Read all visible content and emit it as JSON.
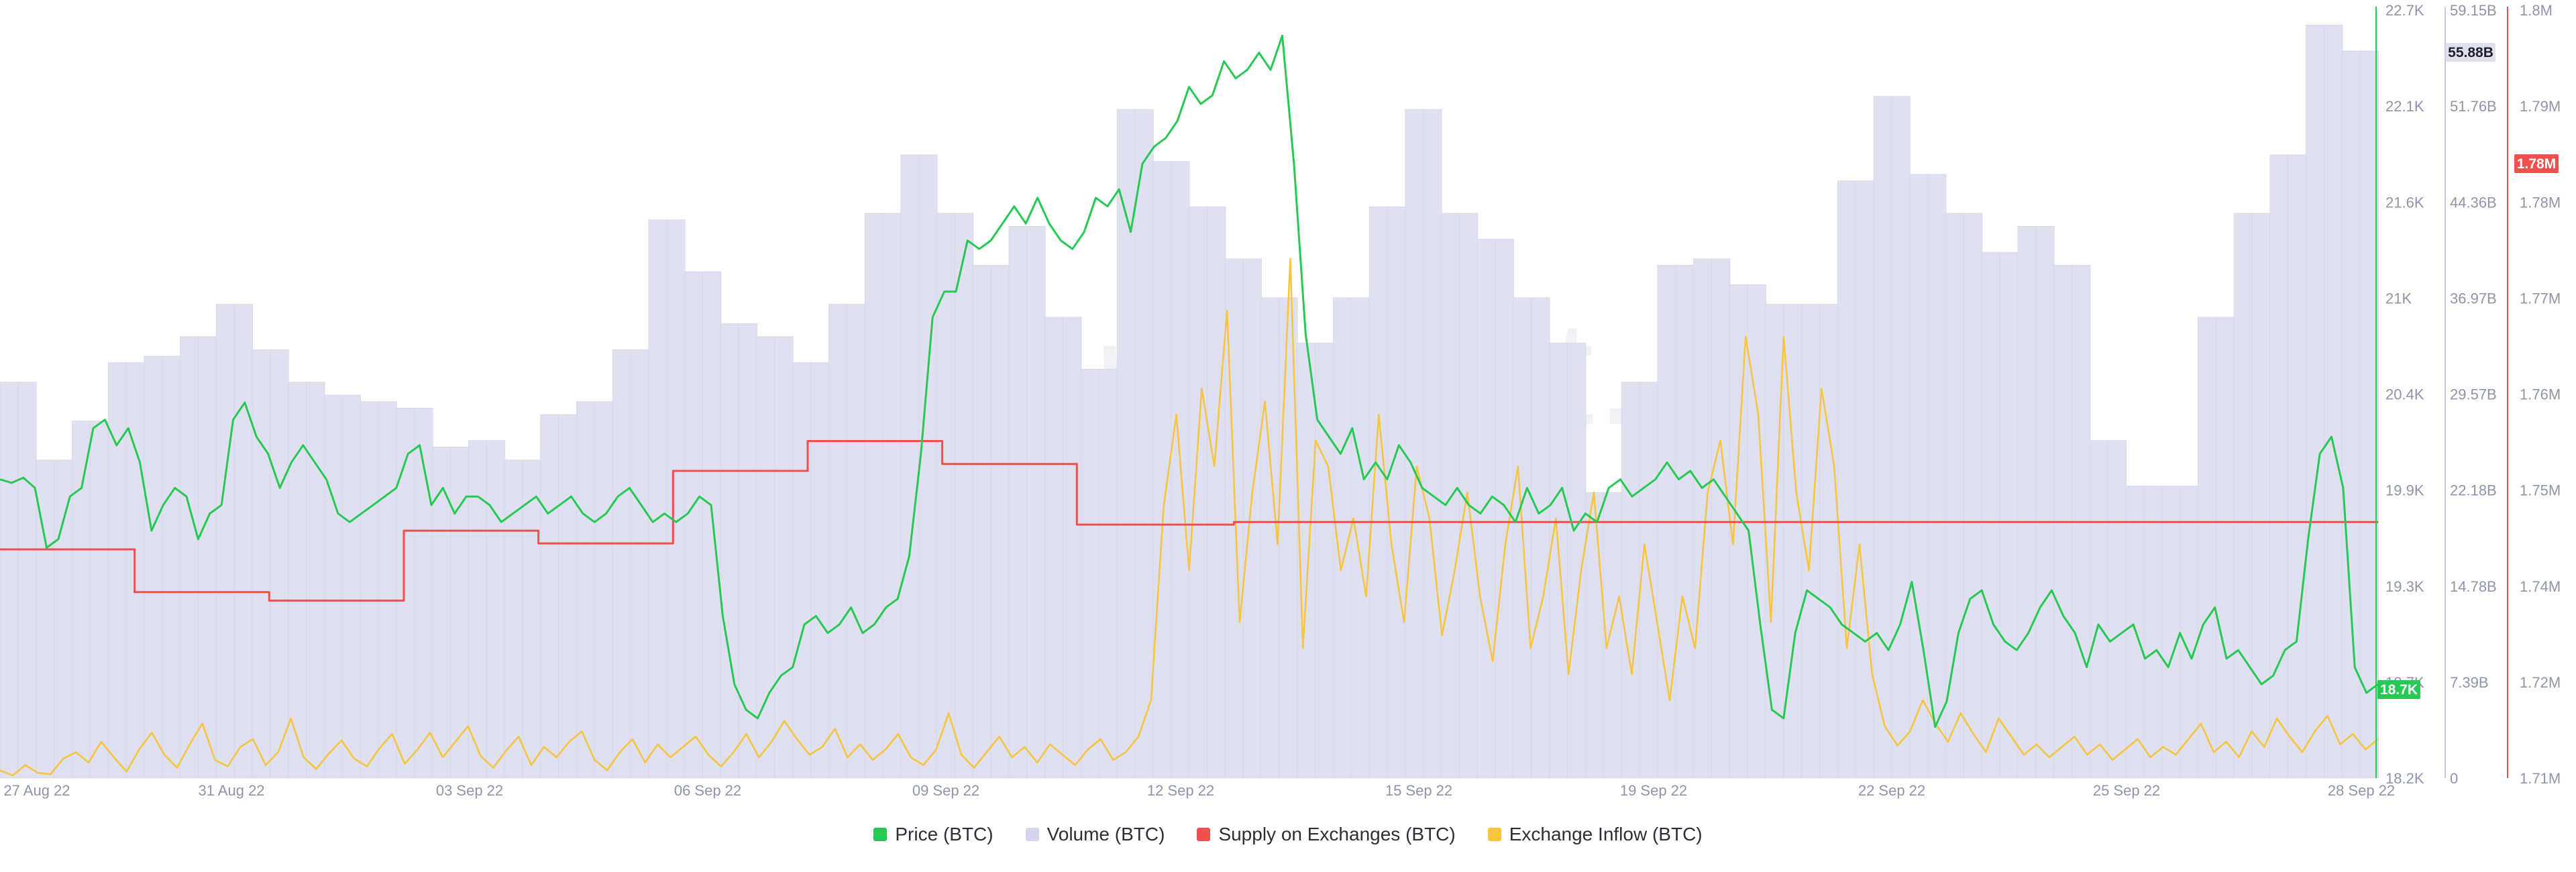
{
  "watermark": "santiment.",
  "legend": [
    {
      "label": "Price (BTC)",
      "color": "#26c953"
    },
    {
      "label": "Volume (BTC)",
      "color": "#d3d6ea"
    },
    {
      "label": "Supply on Exchanges (BTC)",
      "color": "#f0504d"
    },
    {
      "label": "Exchange Inflow (BTC)",
      "color": "#f9c53c"
    }
  ],
  "chart_data": {
    "type": "line",
    "x_start": "27 Aug 22",
    "x_end": "28 Sep 22",
    "x_ticks": [
      "27 Aug 22",
      "31 Aug 22",
      "03 Sep 22",
      "06 Sep 22",
      "09 Sep 22",
      "12 Sep 22",
      "15 Sep 22",
      "19 Sep 22",
      "22 Sep 22",
      "25 Sep 22",
      "28 Sep 22"
    ],
    "axes": {
      "price": {
        "ticks": [
          "22.7K",
          "22.1K",
          "21.6K",
          "21K",
          "20.4K",
          "19.9K",
          "19.3K",
          "18.7K",
          "18.2K"
        ],
        "range": [
          18200,
          22700
        ],
        "badge": "18.7K",
        "color": "#26c953"
      },
      "volume": {
        "ticks": [
          "59.15B",
          "51.76B",
          "44.36B",
          "36.97B",
          "29.57B",
          "22.18B",
          "14.78B",
          "7.39B",
          "0"
        ],
        "range": [
          0,
          59.15
        ],
        "badge": "55.88B",
        "color": "#8f95a8"
      },
      "supply": {
        "ticks": [
          "1.8M",
          "1.79M",
          "1.78M",
          "1.77M",
          "1.76M",
          "1.75M",
          "1.74M",
          "1.72M",
          "1.71M"
        ],
        "range": [
          1.71,
          1.8
        ],
        "badge": "1.78M",
        "color": "#f0504d"
      }
    },
    "series": [
      {
        "name": "Price (BTC)",
        "color": "#26c953",
        "values": [
          19950,
          19930,
          19960,
          19900,
          19550,
          19600,
          19850,
          19900,
          20250,
          20300,
          20150,
          20250,
          20050,
          19650,
          19800,
          19900,
          19850,
          19600,
          19750,
          19800,
          20300,
          20400,
          20200,
          20100,
          19900,
          20050,
          20150,
          20050,
          19950,
          19750,
          19700,
          19750,
          19800,
          19850,
          19900,
          20100,
          20150,
          19800,
          19900,
          19750,
          19850,
          19850,
          19800,
          19700,
          19750,
          19800,
          19850,
          19750,
          19800,
          19850,
          19750,
          19700,
          19750,
          19850,
          19900,
          19800,
          19700,
          19750,
          19700,
          19750,
          19850,
          19800,
          19150,
          18750,
          18600,
          18550,
          18700,
          18800,
          18850,
          19100,
          19150,
          19050,
          19100,
          19200,
          19050,
          19100,
          19200,
          19250,
          19500,
          20100,
          20900,
          21050,
          21050,
          21350,
          21300,
          21350,
          21450,
          21550,
          21450,
          21600,
          21450,
          21350,
          21300,
          21400,
          21600,
          21550,
          21650,
          21400,
          21800,
          21900,
          21950,
          22050,
          22250,
          22150,
          22200,
          22400,
          22300,
          22350,
          22450,
          22350,
          22550,
          21800,
          20800,
          20300,
          20200,
          20100,
          20250,
          19950,
          20050,
          19950,
          20150,
          20050,
          19900,
          19850,
          19800,
          19900,
          19800,
          19750,
          19850,
          19800,
          19700,
          19900,
          19750,
          19800,
          19900,
          19650,
          19750,
          19700,
          19900,
          19950,
          19850,
          19900,
          19950,
          20050,
          19950,
          20000,
          19900,
          19950,
          19850,
          19750,
          19650,
          19100,
          18600,
          18550,
          19050,
          19300,
          19250,
          19200,
          19100,
          19050,
          19000,
          19050,
          18950,
          19100,
          19350,
          18950,
          18500,
          18650,
          19050,
          19250,
          19300,
          19100,
          19000,
          18950,
          19050,
          19200,
          19300,
          19150,
          19050,
          18850,
          19100,
          19000,
          19050,
          19100,
          18900,
          18950,
          18850,
          19050,
          18900,
          19100,
          19200,
          18900,
          18950,
          18850,
          18750,
          18800,
          18950,
          19000,
          19600,
          20100,
          20200,
          19900,
          18850,
          18700,
          18750
        ]
      },
      {
        "name": "Volume (BTC)",
        "color": "#d3d6ea",
        "values": [
          30.5,
          30.5,
          24.5,
          24.5,
          27.5,
          27.5,
          32,
          32,
          32.5,
          32.5,
          34,
          34,
          36.5,
          36.5,
          33,
          33,
          30.5,
          30.5,
          29.5,
          29.5,
          29,
          29,
          28.5,
          28.5,
          25.5,
          25.5,
          26,
          26,
          24.5,
          24.5,
          28,
          28,
          29,
          29,
          33,
          33,
          43,
          43,
          39,
          39,
          35,
          35,
          34,
          34,
          32,
          32,
          36.5,
          36.5,
          43.5,
          43.5,
          48,
          48,
          43.5,
          43.5,
          39.5,
          39.5,
          42.5,
          42.5,
          35.5,
          35.5,
          31.5,
          31.5,
          51.5,
          51.5,
          47.5,
          47.5,
          44,
          44,
          40,
          40,
          37,
          37,
          33.5,
          33.5,
          37,
          37,
          44,
          44,
          51.5,
          51.5,
          43.5,
          43.5,
          41.5,
          41.5,
          37,
          37,
          33.5,
          33.5,
          22,
          22,
          30.5,
          30.5,
          39.5,
          39.5,
          40,
          40,
          38,
          38,
          36.5,
          36.5,
          36.5,
          36.5,
          46,
          46,
          52.5,
          52.5,
          46.5,
          46.5,
          43.5,
          43.5,
          40.5,
          40.5,
          42.5,
          42.5,
          39.5,
          39.5,
          26,
          26,
          22.5,
          22.5,
          22.5,
          22.5,
          35.5,
          35.5,
          43.5,
          43.5,
          48,
          48,
          58,
          58,
          56,
          56
        ]
      },
      {
        "name": "Supply on Exchanges (BTC)",
        "color": "#f0504d",
        "values": [
          1.7368,
          1.7368,
          1.7368,
          1.7368,
          1.7368,
          1.7368,
          1.7368,
          1.7368,
          1.7368,
          1.7368,
          1.7368,
          1.7368,
          1.7318,
          1.7318,
          1.7318,
          1.7318,
          1.7318,
          1.7318,
          1.7318,
          1.7318,
          1.7318,
          1.7318,
          1.7318,
          1.7318,
          1.7308,
          1.7308,
          1.7308,
          1.7308,
          1.7308,
          1.7308,
          1.7308,
          1.7308,
          1.7308,
          1.7308,
          1.7308,
          1.7308,
          1.739,
          1.739,
          1.739,
          1.739,
          1.739,
          1.739,
          1.739,
          1.739,
          1.739,
          1.739,
          1.739,
          1.739,
          1.7375,
          1.7375,
          1.7375,
          1.7375,
          1.7375,
          1.7375,
          1.7375,
          1.7375,
          1.7375,
          1.7375,
          1.7375,
          1.7375,
          1.746,
          1.746,
          1.746,
          1.746,
          1.746,
          1.746,
          1.746,
          1.746,
          1.746,
          1.746,
          1.746,
          1.746,
          1.7495,
          1.7495,
          1.7495,
          1.7495,
          1.7495,
          1.7495,
          1.7495,
          1.7495,
          1.7495,
          1.7495,
          1.7495,
          1.7495,
          1.7468,
          1.7468,
          1.7468,
          1.7468,
          1.7468,
          1.7468,
          1.7468,
          1.7468,
          1.7468,
          1.7468,
          1.7468,
          1.7468,
          1.7397,
          1.7397,
          1.7397,
          1.7397,
          1.7397,
          1.7397,
          1.7397,
          1.7397,
          1.7397,
          1.7397,
          1.7397,
          1.7397,
          1.7397,
          1.7397,
          1.74,
          1.74,
          1.74,
          1.74,
          1.74,
          1.74,
          1.74,
          1.74,
          1.74,
          1.74,
          1.74,
          1.74,
          1.74,
          1.74,
          1.74,
          1.74,
          1.74,
          1.74,
          1.74,
          1.74,
          1.74,
          1.74,
          1.74,
          1.74,
          1.74,
          1.74,
          1.74,
          1.74,
          1.74,
          1.74,
          1.74,
          1.74,
          1.74,
          1.74,
          1.74,
          1.74,
          1.74,
          1.74,
          1.74,
          1.74,
          1.74,
          1.74,
          1.74,
          1.74,
          1.74,
          1.74,
          1.74,
          1.74,
          1.74,
          1.74,
          1.74,
          1.74,
          1.74,
          1.74,
          1.74,
          1.74,
          1.74,
          1.74,
          1.74,
          1.74,
          1.74,
          1.74,
          1.74,
          1.74,
          1.74,
          1.74,
          1.74,
          1.74,
          1.74,
          1.74,
          1.74,
          1.74,
          1.74,
          1.74,
          1.74,
          1.74,
          1.74,
          1.74,
          1.74,
          1.74,
          1.74,
          1.74,
          1.74,
          1.74,
          1.74,
          1.74,
          1.74,
          1.74,
          1.74,
          1.74,
          1.74,
          1.74,
          1.74,
          1.74,
          1.74,
          1.74,
          1.74,
          1.74,
          1.74,
          1.74,
          1.74,
          1.74,
          1.74
        ]
      },
      {
        "name": "Exchange Inflow (BTC)",
        "color": "#f9c53c",
        "values": [
          0.6,
          0.2,
          1.0,
          0.4,
          0.3,
          1.5,
          2.0,
          1.2,
          2.8,
          1.6,
          0.5,
          2.2,
          3.5,
          1.8,
          0.8,
          2.6,
          4.2,
          1.4,
          0.9,
          2.4,
          3.0,
          1.0,
          2.0,
          4.6,
          1.6,
          0.7,
          1.9,
          2.9,
          1.5,
          0.9,
          2.3,
          3.4,
          1.1,
          2.2,
          3.5,
          1.6,
          2.8,
          4.0,
          1.7,
          0.8,
          2.1,
          3.2,
          1.0,
          2.4,
          1.6,
          2.8,
          3.6,
          1.4,
          0.6,
          2.0,
          3.0,
          1.2,
          2.6,
          1.6,
          2.4,
          3.2,
          1.8,
          0.9,
          2.0,
          3.4,
          1.6,
          2.8,
          4.4,
          3.0,
          1.8,
          2.4,
          3.8,
          1.6,
          2.6,
          1.4,
          2.2,
          3.4,
          1.6,
          1.0,
          2.2,
          5.0,
          1.8,
          0.8,
          2.0,
          3.2,
          1.6,
          2.4,
          1.2,
          2.6,
          1.8,
          1.0,
          2.2,
          3.0,
          1.4,
          2.0,
          3.2,
          6.0,
          21.0,
          28.0,
          16.0,
          30.0,
          24.0,
          36.0,
          12.0,
          22.0,
          29.0,
          18.0,
          40.0,
          10.0,
          26.0,
          24.0,
          16.0,
          20.0,
          14.0,
          28.0,
          18.0,
          12.0,
          24.0,
          20.0,
          11.0,
          16.0,
          22.0,
          14.0,
          9.0,
          18.0,
          24.0,
          10.0,
          14.0,
          20.0,
          8.0,
          16.0,
          22.0,
          10.0,
          14.0,
          8.0,
          18.0,
          12.0,
          6.0,
          14.0,
          10.0,
          22.0,
          26.0,
          18.0,
          34.0,
          28.0,
          12.0,
          34.0,
          22.0,
          16.0,
          30.0,
          24.0,
          10.0,
          18.0,
          8.0,
          4.0,
          2.5,
          3.6,
          6.0,
          4.2,
          2.8,
          5.0,
          3.4,
          2.0,
          4.6,
          3.2,
          1.8,
          2.6,
          1.6,
          2.4,
          3.2,
          1.8,
          2.6,
          1.4,
          2.2,
          3.0,
          1.6,
          2.4,
          1.8,
          3.0,
          4.2,
          2.0,
          2.8,
          1.6,
          3.6,
          2.4,
          4.6,
          3.2,
          2.0,
          3.6,
          4.8,
          2.6,
          3.4,
          2.2,
          3.0
        ]
      }
    ]
  }
}
